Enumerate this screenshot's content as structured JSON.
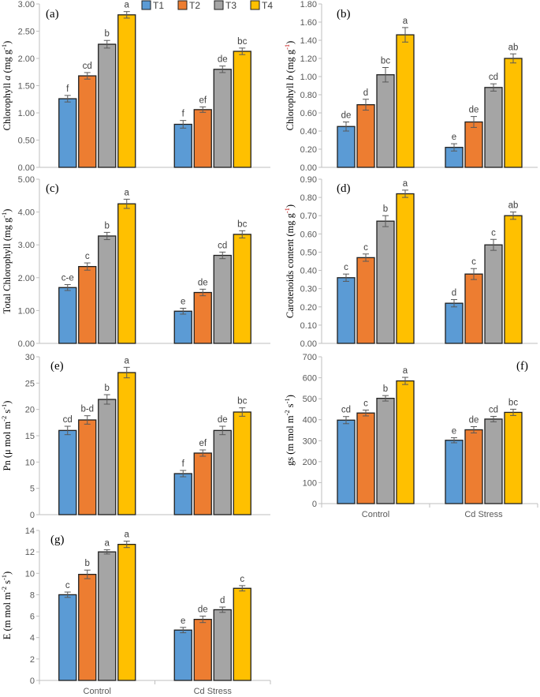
{
  "legend": {
    "labels": [
      "T1",
      "T2",
      "T3",
      "T4"
    ]
  },
  "colors": {
    "T1": "#5b9bd5",
    "T2": "#ed7d31",
    "T3": "#a5a5a5",
    "T4": "#ffc000",
    "bar_edge": "#1f1f1f",
    "axis": "#bfbfbf",
    "grid": "#d9d9d9",
    "text": "#595959"
  },
  "chart_data": [
    {
      "type": "bar",
      "panel": "(a)",
      "ylabel": "Chlorophyll a (mg g⁻¹)",
      "ylabel_parts": [
        {
          "text": "Chlorophyll "
        },
        {
          "text": "a",
          "italic": true
        },
        {
          "text": " (mg g"
        },
        {
          "text": "-1",
          "sup": true
        },
        {
          "text": ")"
        }
      ],
      "categories": [
        "Control",
        "Cd Stress"
      ],
      "ylim": [
        0,
        3.0
      ],
      "ytick_step": 0.5,
      "ytick_decimals": 2,
      "series": [
        {
          "name": "T1",
          "values": [
            1.26,
            0.79
          ],
          "errors": [
            0.06,
            0.07
          ],
          "letters": [
            "f",
            "f"
          ]
        },
        {
          "name": "T2",
          "values": [
            1.68,
            1.06
          ],
          "errors": [
            0.06,
            0.05
          ],
          "letters": [
            "cd",
            "ef"
          ]
        },
        {
          "name": "T3",
          "values": [
            2.26,
            1.8
          ],
          "errors": [
            0.07,
            0.06
          ],
          "letters": [
            "b",
            "de"
          ]
        },
        {
          "name": "T4",
          "values": [
            2.8,
            2.13
          ],
          "errors": [
            0.06,
            0.06
          ],
          "letters": [
            "a",
            "bc"
          ]
        }
      ]
    },
    {
      "type": "bar",
      "panel": "(b)",
      "ylabel": "Chlorophyll b (mg g⁻¹)",
      "ylabel_parts": [
        {
          "text": "Chlorophyll "
        },
        {
          "text": "b",
          "italic": true
        },
        {
          "text": " (mg g"
        },
        {
          "text": "-1",
          "sup": true,
          "color": "#c00000"
        },
        {
          "text": ")"
        }
      ],
      "categories": [
        "Control",
        "Cd Stress"
      ],
      "ylim": [
        0,
        1.8
      ],
      "ytick_step": 0.2,
      "ytick_decimals": 2,
      "series": [
        {
          "name": "T1",
          "values": [
            0.45,
            0.22
          ],
          "errors": [
            0.05,
            0.04
          ],
          "letters": [
            "de",
            "e"
          ]
        },
        {
          "name": "T2",
          "values": [
            0.69,
            0.5
          ],
          "errors": [
            0.06,
            0.06
          ],
          "letters": [
            "d",
            "de"
          ]
        },
        {
          "name": "T3",
          "values": [
            1.02,
            0.88
          ],
          "errors": [
            0.08,
            0.04
          ],
          "letters": [
            "bc",
            "cd"
          ]
        },
        {
          "name": "T4",
          "values": [
            1.46,
            1.2
          ],
          "errors": [
            0.08,
            0.05
          ],
          "letters": [
            "a",
            "ab"
          ]
        }
      ]
    },
    {
      "type": "bar",
      "panel": "(c)",
      "ylabel": "Total Chlorophyll (mg g⁻¹)",
      "ylabel_parts": [
        {
          "text": "Total Chlorophyll (mg g"
        },
        {
          "text": "-1",
          "sup": true
        },
        {
          "text": ")"
        }
      ],
      "categories": [
        "Control",
        "Cd Stress"
      ],
      "ylim": [
        0,
        5.0
      ],
      "ytick_step": 1.0,
      "ytick_decimals": 2,
      "series": [
        {
          "name": "T1",
          "values": [
            1.7,
            0.98
          ],
          "errors": [
            0.09,
            0.09
          ],
          "letters": [
            "c-e",
            "e"
          ]
        },
        {
          "name": "T2",
          "values": [
            2.34,
            1.55
          ],
          "errors": [
            0.11,
            0.1
          ],
          "letters": [
            "c",
            "de"
          ]
        },
        {
          "name": "T3",
          "values": [
            3.27,
            2.68
          ],
          "errors": [
            0.11,
            0.1
          ],
          "letters": [
            "b",
            "cd"
          ]
        },
        {
          "name": "T4",
          "values": [
            4.25,
            3.32
          ],
          "errors": [
            0.14,
            0.11
          ],
          "letters": [
            "a",
            "bc"
          ]
        }
      ]
    },
    {
      "type": "bar",
      "panel": "(d)",
      "ylabel": "Carotenoids content (mg g⁻¹)",
      "ylabel_parts": [
        {
          "text": "Carotenoids content (mg g"
        },
        {
          "text": "-1",
          "sup": true,
          "color": "#c00000"
        },
        {
          "text": ")"
        }
      ],
      "categories": [
        "Control",
        "Cd Stress"
      ],
      "ylim": [
        0,
        0.9
      ],
      "ytick_step": 0.1,
      "ytick_decimals": 2,
      "series": [
        {
          "name": "T1",
          "values": [
            0.36,
            0.22
          ],
          "errors": [
            0.02,
            0.02
          ],
          "letters": [
            "c",
            "d"
          ]
        },
        {
          "name": "T2",
          "values": [
            0.47,
            0.38
          ],
          "errors": [
            0.02,
            0.03
          ],
          "letters": [
            "c",
            "c"
          ]
        },
        {
          "name": "T3",
          "values": [
            0.67,
            0.54
          ],
          "errors": [
            0.03,
            0.03
          ],
          "letters": [
            "b",
            "c"
          ]
        },
        {
          "name": "T4",
          "values": [
            0.82,
            0.7
          ],
          "errors": [
            0.02,
            0.02
          ],
          "letters": [
            "a",
            "ab"
          ]
        }
      ]
    },
    {
      "type": "bar",
      "panel": "(e)",
      "ylabel": "Pn (μ mol m⁻² s⁻¹)",
      "ylabel_parts": [
        {
          "text": "Pn (μ mol m"
        },
        {
          "text": "-2",
          "sup": true
        },
        {
          "text": " s"
        },
        {
          "text": "-1",
          "sup": true
        },
        {
          "text": ")"
        }
      ],
      "categories": [
        "Control",
        "Cd Stress"
      ],
      "ylim": [
        0,
        30
      ],
      "ytick_step": 5,
      "ytick_decimals": 0,
      "series": [
        {
          "name": "T1",
          "values": [
            16.0,
            7.8
          ],
          "errors": [
            0.8,
            0.6
          ],
          "letters": [
            "cd",
            "f"
          ]
        },
        {
          "name": "T2",
          "values": [
            18.0,
            11.7
          ],
          "errors": [
            0.8,
            0.6
          ],
          "letters": [
            "b-d",
            "ef"
          ]
        },
        {
          "name": "T3",
          "values": [
            21.9,
            16.0
          ],
          "errors": [
            0.9,
            0.8
          ],
          "letters": [
            "b",
            "de"
          ]
        },
        {
          "name": "T4",
          "values": [
            27.0,
            19.5
          ],
          "errors": [
            1.0,
            0.8
          ],
          "letters": [
            "a",
            "bc"
          ]
        }
      ]
    },
    {
      "type": "bar",
      "panel": "(f)",
      "ylabel": "gs (m mol m⁻² s⁻¹)",
      "ylabel_parts": [
        {
          "text": "gs (m mol m"
        },
        {
          "text": "-2",
          "sup": true
        },
        {
          "text": " s"
        },
        {
          "text": "-1",
          "sup": true
        },
        {
          "text": ")"
        }
      ],
      "categories": [
        "Control",
        "Cd Stress"
      ],
      "ylim": [
        0,
        700
      ],
      "ytick_step": 100,
      "ytick_decimals": 0,
      "series": [
        {
          "name": "T1",
          "values": [
            398,
            302
          ],
          "errors": [
            17,
            12
          ],
          "letters": [
            "cd",
            "e"
          ]
        },
        {
          "name": "T2",
          "values": [
            432,
            352
          ],
          "errors": [
            14,
            15
          ],
          "letters": [
            "c",
            "de"
          ]
        },
        {
          "name": "T3",
          "values": [
            502,
            403
          ],
          "errors": [
            13,
            13
          ],
          "letters": [
            "b",
            "cd"
          ]
        },
        {
          "name": "T4",
          "values": [
            585,
            435
          ],
          "errors": [
            17,
            15
          ],
          "letters": [
            "a",
            "bc"
          ]
        }
      ]
    },
    {
      "type": "bar",
      "panel": "(g)",
      "ylabel": "E (m mol m⁻² s⁻¹)",
      "ylabel_parts": [
        {
          "text": "E (m mol m"
        },
        {
          "text": "-2",
          "sup": true
        },
        {
          "text": " s"
        },
        {
          "text": "-1",
          "sup": true
        },
        {
          "text": ")"
        }
      ],
      "categories": [
        "Control",
        "Cd Stress"
      ],
      "ylim": [
        0,
        14
      ],
      "ytick_step": 2,
      "ytick_decimals": 0,
      "series": [
        {
          "name": "T1",
          "values": [
            8.0,
            4.7
          ],
          "errors": [
            0.25,
            0.25
          ],
          "letters": [
            "c",
            "e"
          ]
        },
        {
          "name": "T2",
          "values": [
            9.9,
            5.7
          ],
          "errors": [
            0.4,
            0.3
          ],
          "letters": [
            "b",
            "de"
          ]
        },
        {
          "name": "T3",
          "values": [
            12.0,
            6.6
          ],
          "errors": [
            0.2,
            0.25
          ],
          "letters": [
            "a",
            "d"
          ]
        },
        {
          "name": "T4",
          "values": [
            12.7,
            8.6
          ],
          "errors": [
            0.3,
            0.25
          ],
          "letters": [
            "a",
            "c"
          ]
        }
      ]
    }
  ]
}
